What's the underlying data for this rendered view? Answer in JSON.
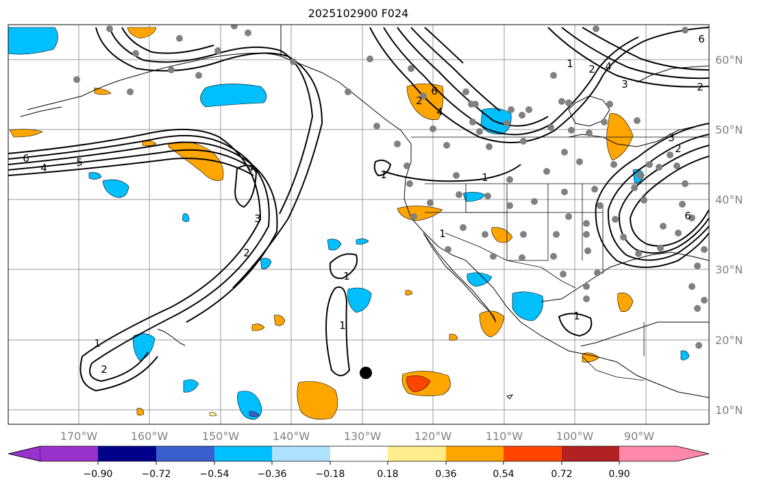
{
  "title": "2025102900 F024",
  "lon_labels": [
    "170°W",
    "160°W",
    "150°W",
    "140°W",
    "130°W",
    "120°W",
    "110°W",
    "100°W",
    "90°W"
  ],
  "lat_labels": [
    "60°N",
    "50°N",
    "40°N",
    "30°N",
    "20°N",
    "10°N"
  ],
  "colorbar": {
    "tick_labels": [
      "−0.90",
      "−0.72",
      "−0.54",
      "−0.36",
      "−0.18",
      "0.18",
      "0.36",
      "0.54",
      "0.72",
      "0.90"
    ],
    "colors": [
      "#9932cc",
      "#00008b",
      "#3a5fcd",
      "#00bfff",
      "#b0e2ff",
      "#ffffff",
      "#ffec8b",
      "#ffa500",
      "#ff4500",
      "#b22222",
      "#ff88aa"
    ]
  },
  "contour_labels": [
    "1",
    "2",
    "3",
    "4",
    "5",
    "6"
  ]
}
